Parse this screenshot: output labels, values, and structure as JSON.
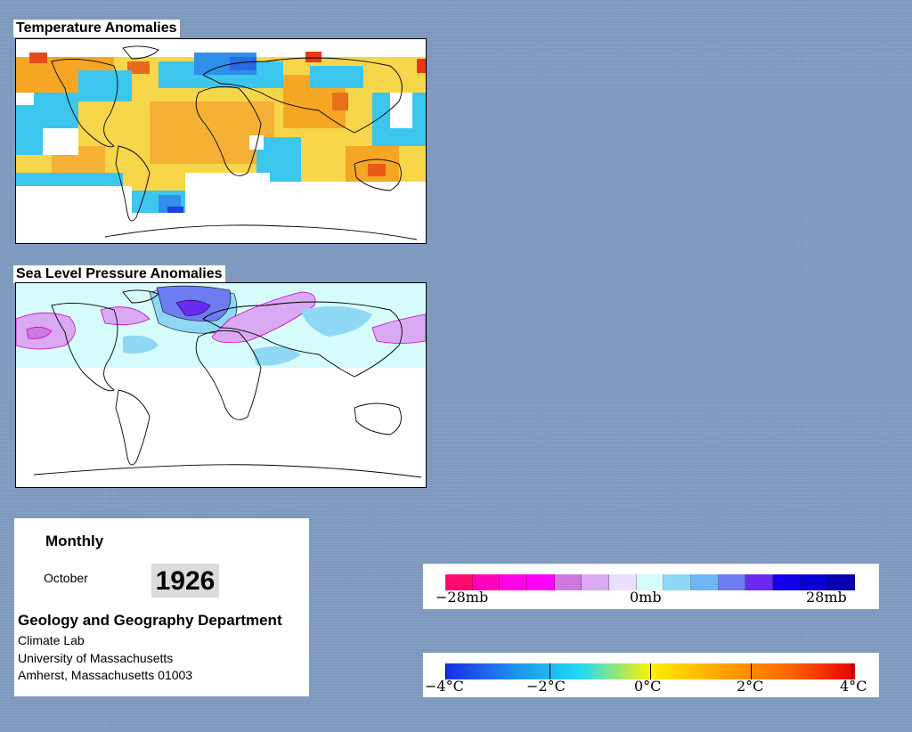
{
  "temperature_panel": {
    "title": "Temperature Anomalies"
  },
  "pressure_panel": {
    "title": "Sea Level Pressure Anomalies"
  },
  "info": {
    "period": "Monthly",
    "month": "October",
    "year": "1926",
    "department": "Geology and Geography Department",
    "lab": "Climate Lab",
    "university": "University of Massachusetts",
    "address": "Amherst, Massachusetts 01003"
  },
  "pressure_legend": {
    "colors": [
      "#ff0a6e",
      "#ff00bf",
      "#ff00e6",
      "#ff00ff",
      "#cc7ae0",
      "#d9aaf2",
      "#ece0ff",
      "#d6fbfb",
      "#8fd8f5",
      "#6fb6f7",
      "#6e7cf2",
      "#6a2af0",
      "#1500ee",
      "#0a00d4",
      "#0800b0"
    ],
    "labels": [
      "−28mb",
      "0mb",
      "28mb"
    ]
  },
  "temperature_legend": {
    "labels": [
      "−4°C",
      "−2°C",
      "0°C",
      "2°C",
      "4°C"
    ],
    "gradient": [
      "#1a2ae8",
      "#1e90ee",
      "#22ddf2",
      "#ffef00",
      "#ffa800",
      "#ff6a00",
      "#e80000"
    ]
  },
  "colors": {
    "background": "#7b97bd",
    "warm": "#f5a623",
    "cool": "#29b6e8",
    "land_line": "#000000"
  }
}
